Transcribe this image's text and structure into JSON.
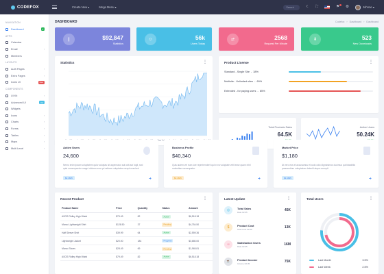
{
  "brand": {
    "name": "CODEFOX"
  },
  "topnav": {
    "create": "Create New ▾",
    "mega": "Mega Menu ▾",
    "search_placeholder": "Search",
    "user": "Johnne ▾"
  },
  "sidebar": {
    "sections": [
      "NAVIGATION",
      "APPS",
      "LAYOUTS",
      "COMPONENTS"
    ],
    "items": [
      {
        "label": "Dashboard",
        "badge": "2"
      },
      {
        "label": "Calendar"
      },
      {
        "label": "Email"
      },
      {
        "label": "Members"
      },
      {
        "label": "Auth Pages"
      },
      {
        "label": "Extra Pages"
      },
      {
        "label": "Icons UI",
        "badge": "New"
      },
      {
        "label": "UI Kit"
      },
      {
        "label": "Advanced UI",
        "badge": "Hot"
      },
      {
        "label": "Widgets"
      },
      {
        "label": "Icons"
      },
      {
        "label": "Charts"
      },
      {
        "label": "Forms"
      },
      {
        "label": "Tables"
      },
      {
        "label": "Maps"
      },
      {
        "label": "Multi Level"
      }
    ]
  },
  "page": {
    "title": "DASHBOARD",
    "crumbs": [
      "Codefox",
      "Dashboard",
      "Dashboard"
    ]
  },
  "stats": [
    {
      "value": "$92,847",
      "label": "Statistics",
      "color": "#7c85dc",
      "icon": "❙"
    },
    {
      "value": "56k",
      "label": "Users Today",
      "color": "#49bfe6",
      "icon": "☺"
    },
    {
      "value": "2568",
      "label": "Request Per Minute",
      "color": "#f26a8d",
      "icon": "⇄"
    },
    {
      "value": "523",
      "label": "New Downloads",
      "color": "#39c98c",
      "icon": "⬇"
    }
  ],
  "statistics": {
    "title": "Statistics",
    "xlabels": [
      "Mar '12",
      "Jun '12",
      "Sep '12",
      "Dec '12",
      "Mar '13",
      "Jun '13",
      "Sep '13",
      "Dec '13",
      "Mar '14",
      "Jun '14",
      "Sep '14",
      "Dec '14",
      "Feb '15"
    ]
  },
  "licenses": {
    "title": "Product License",
    "rows": [
      {
        "label": "Standard - Single Site",
        "pct": "38%",
        "frac": 0.38,
        "color": "#49bfe6"
      },
      {
        "label": "Multisite - Unlimited sites",
        "pct": "69%",
        "frac": 0.69,
        "color": "#f2a324"
      },
      {
        "label": "Extended - for paying users",
        "pct": "85%",
        "frac": 0.85,
        "color": "#e55353"
      }
    ]
  },
  "total_sales": {
    "label": "Total Products Sales",
    "value": "64.5K",
    "pct": "↗ 30.7%"
  },
  "active_users_mini": {
    "label": "Active Users",
    "value": "50.24K",
    "pct": "↗ 30.7%"
  },
  "info_cards": [
    {
      "title": "Active Users",
      "value": "24,600",
      "desc": "Nemo enim ipsam voluptatem quia voluptas sit aspernatur aut odit aut fugit, sed quia consequuntur magni dolores eos qui ratione voluptatem sequi nesciunt.",
      "badge": "$3.4845",
      "badge_bg": "#d6ecfb",
      "badge_color": "#3c82f0"
    },
    {
      "title": "Business Profile",
      "value": "$40,340",
      "desc": "Quis autem vel eum iure reprehenderit qui in ea voluptate velit esse quam nihil molestiae consequatur.",
      "badge": "$3.4845",
      "badge_bg": "#fdeccf",
      "badge_color": "#e89a16"
    },
    {
      "title": "Market Price",
      "value": "$1,180",
      "desc": "At vero eos et accusamus et iusto odio dignissimos ducimus qui blanditiis praesentium voluptatum deleniti atque corrupti.",
      "badge": "$3.4845",
      "badge_bg": "#d6ecfb",
      "badge_color": "#3c82f0"
    }
  ],
  "recent": {
    "title": "Recent Product",
    "headers": [
      "Product Name",
      "Price",
      "Quantity",
      "Status",
      "Amount"
    ],
    "rows": [
      {
        "name": "ASOS Ridley High Waist",
        "price": "$79.49",
        "qty": "82",
        "status": "Active",
        "amount": "$6,518.18"
      },
      {
        "name": "Marco Lightweight Shirt",
        "price": "$128.50",
        "qty": "37",
        "status": "Pending",
        "amount": "$4,754.50"
      },
      {
        "name": "Half Sleeve Shirt",
        "price": "$39.99",
        "qty": "64",
        "status": "Active",
        "amount": "$2,559.36"
      },
      {
        "name": "Lightweight Jacket",
        "price": "$20.00",
        "qty": "184",
        "status": "Progress",
        "amount": "$3,680.00"
      },
      {
        "name": "Marco Shoes",
        "price": "$28.49",
        "qty": "69",
        "status": "Pending",
        "amount": "$1,965.81"
      },
      {
        "name": "ASOS Ridley High Waist",
        "price": "$79.49",
        "qty": "82",
        "status": "Active",
        "amount": "$6,518.18"
      }
    ],
    "status_colors": {
      "Active": {
        "bg": "#d9f4e6",
        "fg": "#2eb85c"
      },
      "Pending": {
        "bg": "#fdeccf",
        "fg": "#e89a16"
      },
      "Progress": {
        "bg": "#d6ecfb",
        "fg": "#3c82f0"
      }
    }
  },
  "latest": {
    "title": "Latest Update",
    "rows": [
      {
        "title": "Total Sales",
        "date": "Date 02.05",
        "value": "45K",
        "bg": "#ddf1fb",
        "fg": "#49bfe6",
        "icon": "◎"
      },
      {
        "title": "Product Cost",
        "date": "Total Cost 02.05",
        "value": "13K",
        "bg": "#fdeccf",
        "fg": "#e89a16",
        "icon": "$"
      },
      {
        "title": "Satisfaction Users",
        "date": "Date 02.05",
        "value": "16M",
        "bg": "#fde1e8",
        "fg": "#f26a8d",
        "icon": "☺"
      },
      {
        "title": "Product Income",
        "date": "Income 02.05",
        "value": "75K",
        "bg": "#e1e3e8",
        "fg": "#3a3f51",
        "icon": "☕"
      }
    ]
  },
  "total_users": {
    "title": "Total Users",
    "legend": [
      {
        "label": "Last Month",
        "value": "3.5%",
        "color": "#49bfe6"
      },
      {
        "label": "Last Week",
        "value": "2.5%",
        "color": "#f26a8d"
      }
    ]
  }
}
